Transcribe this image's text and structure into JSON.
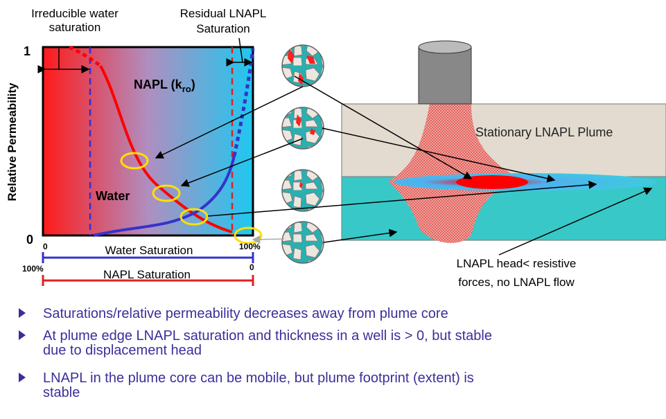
{
  "graph": {
    "irreducible_label": [
      "Irreducible water",
      "saturation"
    ],
    "residual_label": [
      "Residual LNAPL",
      "Saturation"
    ],
    "y_axis_label": "Relative Permeability",
    "y_top": "1",
    "y_bottom": "0",
    "napl_curve_label": {
      "main": "NAPL (k",
      "sub": "ro",
      "end": ")"
    },
    "water_curve_label": "Water",
    "water_axis": {
      "left": "0",
      "title": "Water Saturation",
      "right": "100%"
    },
    "napl_axis": {
      "left": "100%",
      "title": "NAPL Saturation",
      "right": "0"
    }
  },
  "plume": {
    "title": "Stationary LNAPL Plume",
    "note": [
      "LNAPL head< resistive",
      "forces, no LNAPL flow"
    ]
  },
  "bullets": [
    [
      "Saturations/relative permeability decreases away from plume core"
    ],
    [
      "At plume edge LNAPL saturation and thickness in a well is > 0, but stable",
      "due to displacement head"
    ],
    [
      "LNAPL in the plume core can be mobile, but plume footprint (extent) is",
      "stable"
    ]
  ]
}
